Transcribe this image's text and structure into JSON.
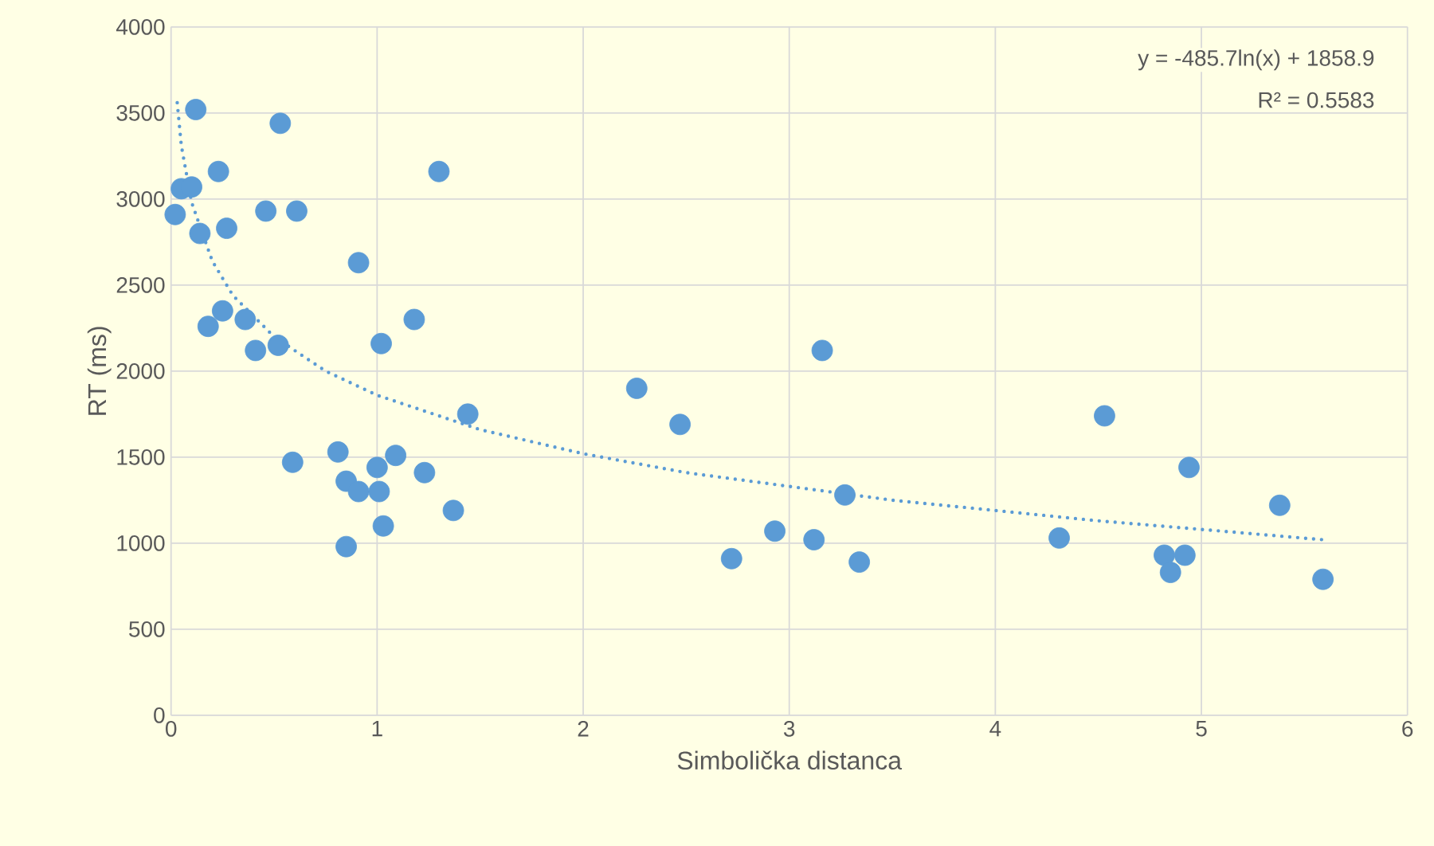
{
  "chart_data": {
    "type": "scatter",
    "xlabel": "Simbolička distanca",
    "ylabel": "RT (ms)",
    "xlim": [
      0,
      6
    ],
    "xticks": [
      0,
      1,
      2,
      3,
      4,
      5,
      6
    ],
    "ylim": [
      0,
      4000
    ],
    "yticks": [
      0,
      500,
      1000,
      1500,
      2000,
      2500,
      3000,
      3500,
      4000
    ],
    "grid": true,
    "marker": "circle",
    "annotations": [
      "y = -485.7ln(x) + 1858.9",
      "R² = 0.5583"
    ],
    "series": [
      {
        "color": "#5b9bd5",
        "x": [
          0.02,
          0.05,
          0.1,
          0.12,
          0.14,
          0.23,
          0.27,
          0.18,
          0.25,
          0.36,
          0.41,
          0.46,
          0.52,
          0.53,
          0.61,
          0.59,
          0.91,
          0.81,
          0.85,
          0.9,
          0.91,
          0.85,
          1.0,
          1.01,
          1.03,
          1.02,
          1.09,
          1.18,
          1.23,
          1.3,
          1.37,
          1.44,
          2.26,
          2.47,
          2.72,
          2.93,
          3.12,
          3.16,
          3.27,
          3.34,
          4.31,
          4.53,
          4.82,
          4.85,
          4.92,
          4.94,
          5.38,
          5.59
        ],
        "values": [
          2910,
          3060,
          3070,
          3520,
          2800,
          3160,
          2830,
          2260,
          2350,
          2300,
          2120,
          2930,
          2150,
          3440,
          2930,
          1470,
          2630,
          1530,
          1360,
          null,
          1300,
          980,
          1440,
          1300,
          1100,
          2160,
          1510,
          2300,
          1410,
          3160,
          1190,
          1750,
          1900,
          1690,
          910,
          1070,
          1020,
          2120,
          1280,
          890,
          1030,
          1740,
          930,
          830,
          930,
          1440,
          1220,
          790
        ]
      },
      {
        "type": "line",
        "color": "#5b9bd5",
        "marker": "none",
        "line_style": "dotted",
        "x": [
          0.03,
          0.05,
          0.1,
          0.2,
          0.3,
          0.5,
          0.75,
          1,
          1.5,
          2,
          2.5,
          3,
          3.5,
          4,
          4.5,
          5,
          5.59
        ],
        "values": [
          3560,
          3310,
          2980,
          2640,
          2440,
          2200,
          2000,
          1860,
          1660,
          1520,
          1410,
          1330,
          1250,
          1190,
          1130,
          1080,
          1020
        ]
      }
    ]
  }
}
